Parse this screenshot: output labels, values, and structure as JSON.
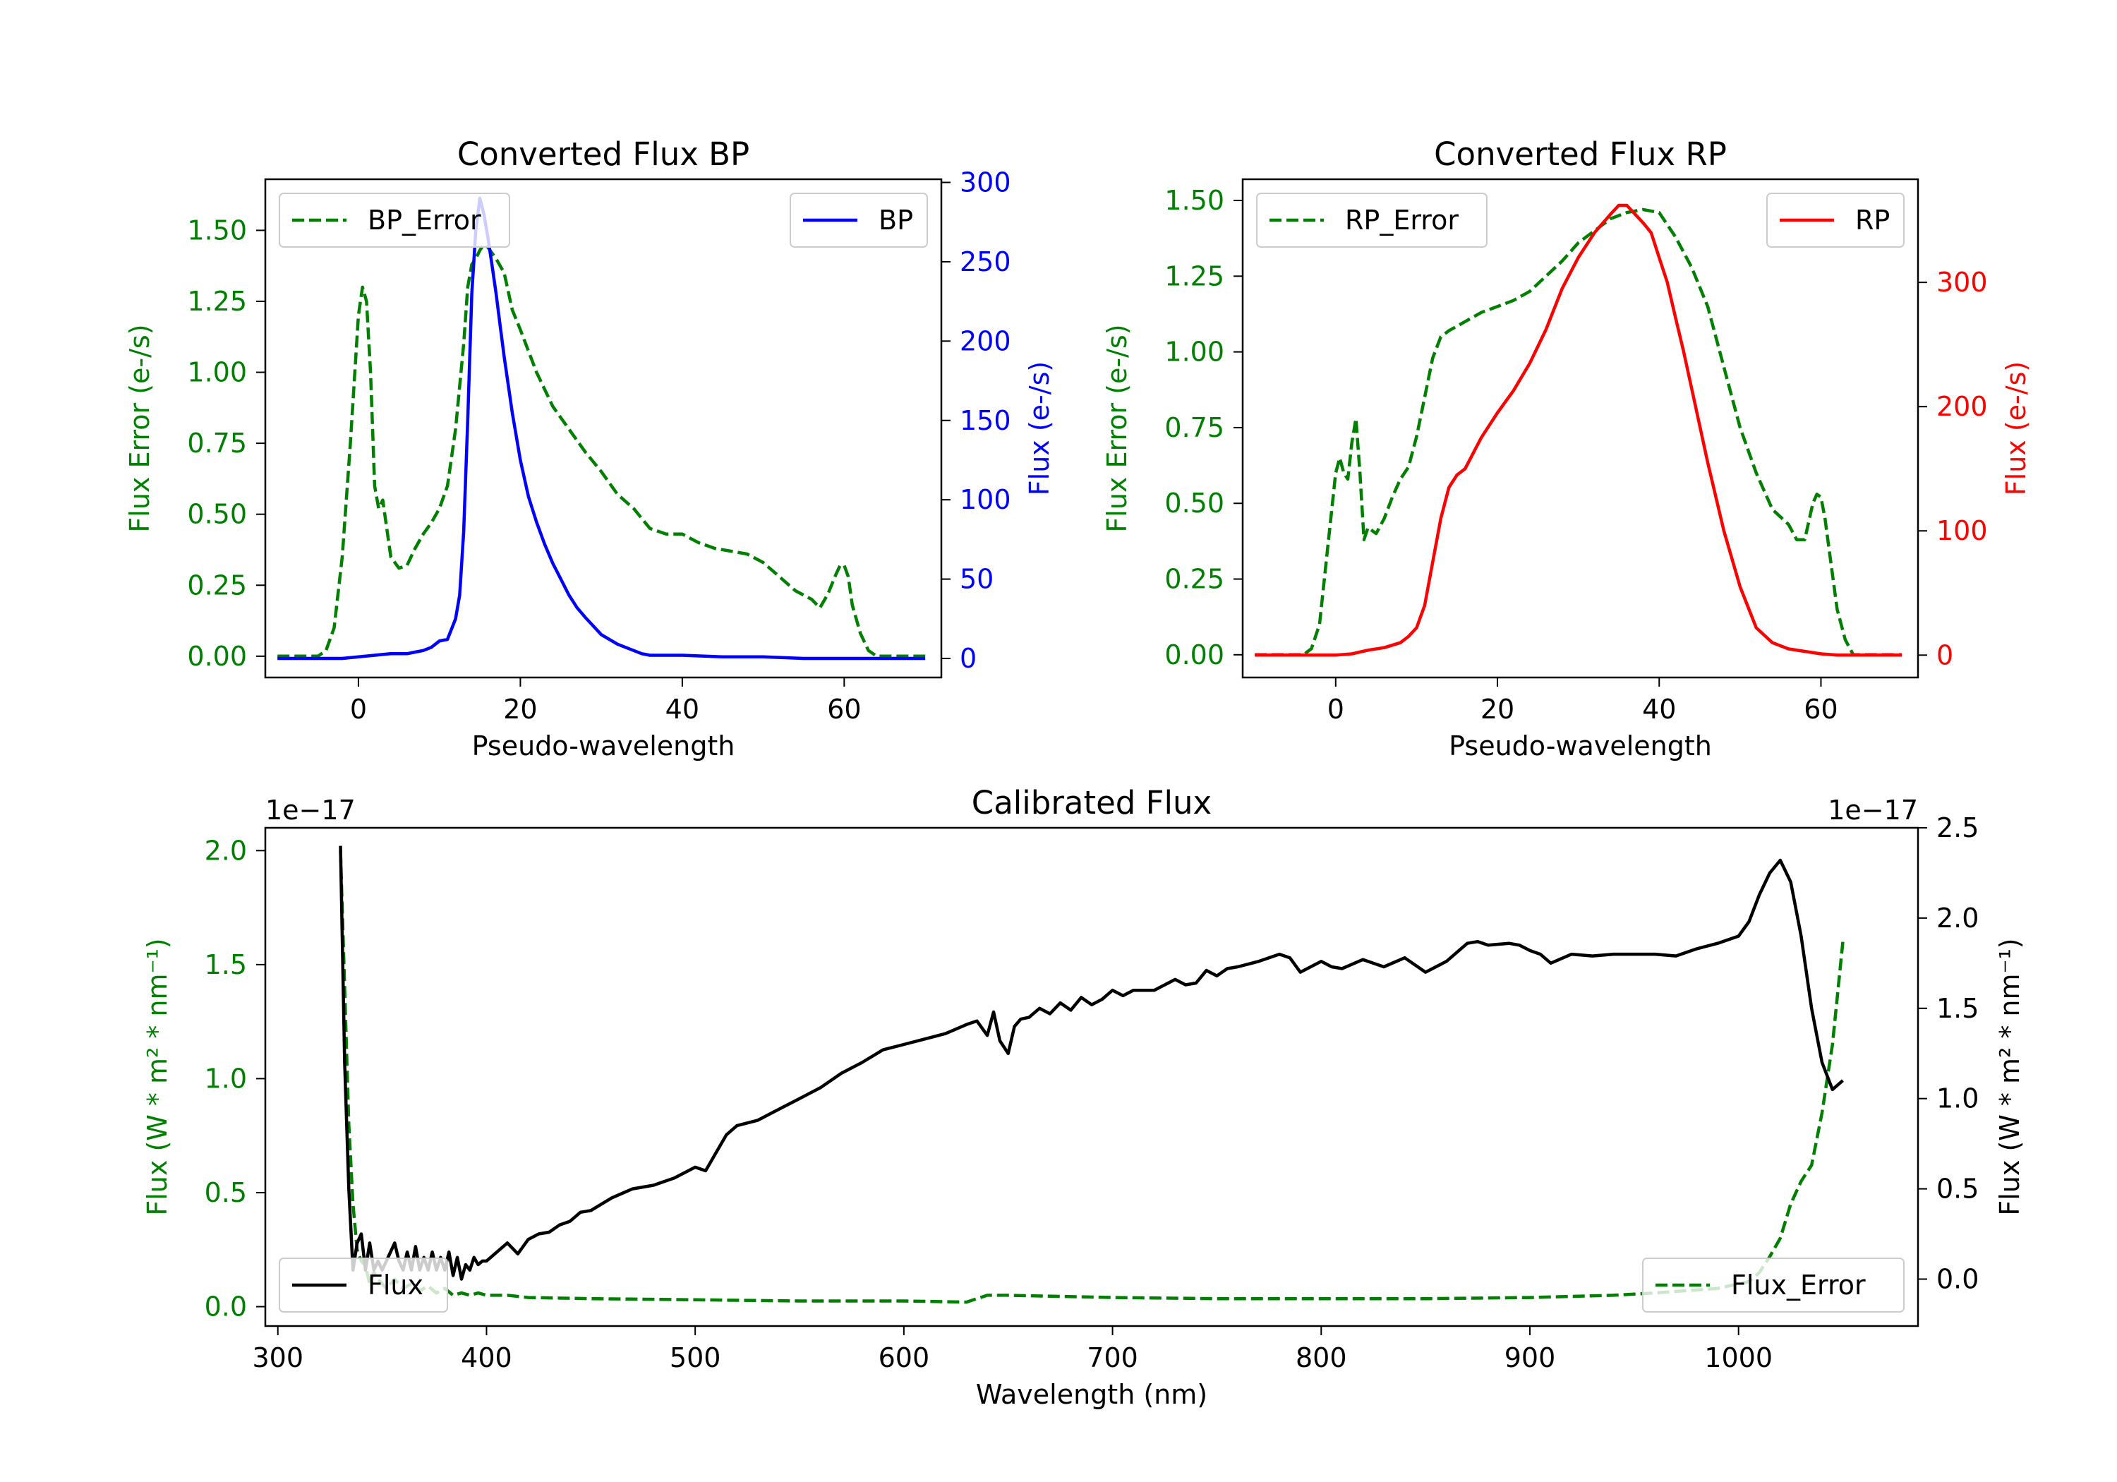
{
  "chart_data": [
    {
      "id": "bp",
      "type": "line",
      "title": "Converted Flux BP",
      "xlabel": "Pseudo-wavelength",
      "xlim": [
        -11.5,
        72
      ],
      "xticks": [
        0,
        20,
        40,
        60
      ],
      "xtick_labels": [
        "0",
        "20",
        "40",
        "60"
      ],
      "y_left": {
        "label": "Flux Error (e-/s)",
        "color": "#008000",
        "lim": [
          -0.075,
          1.68
        ],
        "ticks": [
          0,
          0.25,
          0.5,
          0.75,
          1.0,
          1.25,
          1.5
        ],
        "tick_labels": [
          "0.00",
          "0.25",
          "0.50",
          "0.75",
          "1.00",
          "1.25",
          "1.50"
        ]
      },
      "y_right": {
        "label": "Flux (e-/s)",
        "color": "#0000ff",
        "lim": [
          -12,
          302
        ],
        "ticks": [
          0,
          50,
          100,
          150,
          200,
          250,
          300
        ],
        "tick_labels": [
          "0",
          "50",
          "100",
          "150",
          "200",
          "250",
          "300"
        ]
      },
      "legend_left": {
        "label": "BP_Error",
        "position": "upper left"
      },
      "legend_right": {
        "label": "BP",
        "position": "upper right"
      },
      "series": [
        {
          "name": "BP_Error",
          "axis": "left",
          "style": "dashed",
          "color": "#008000",
          "x": [
            -10,
            -5,
            -4,
            -3,
            -2,
            -1,
            0,
            0.5,
            1,
            1.5,
            2,
            2.5,
            3,
            3.5,
            4,
            5,
            6,
            7,
            8,
            9,
            10,
            11,
            12,
            13,
            13.5,
            14,
            14.5,
            15,
            15.5,
            16,
            16.5,
            17,
            18,
            19,
            20,
            22,
            24,
            26,
            28,
            30,
            32,
            34,
            36,
            38,
            40,
            42,
            44,
            46,
            48,
            50,
            52,
            54,
            56,
            57,
            58,
            59,
            59.5,
            60,
            60.5,
            61,
            62,
            63,
            64,
            65,
            67,
            70
          ],
          "y": [
            0,
            0,
            0.02,
            0.1,
            0.35,
            0.75,
            1.2,
            1.3,
            1.25,
            1.0,
            0.6,
            0.52,
            0.55,
            0.45,
            0.35,
            0.31,
            0.32,
            0.38,
            0.43,
            0.47,
            0.52,
            0.6,
            0.8,
            1.1,
            1.3,
            1.38,
            1.4,
            1.43,
            1.45,
            1.44,
            1.42,
            1.4,
            1.35,
            1.22,
            1.15,
            1.0,
            0.88,
            0.8,
            0.72,
            0.65,
            0.57,
            0.52,
            0.45,
            0.43,
            0.43,
            0.4,
            0.38,
            0.37,
            0.36,
            0.33,
            0.28,
            0.23,
            0.2,
            0.17,
            0.22,
            0.29,
            0.32,
            0.32,
            0.28,
            0.18,
            0.08,
            0.02,
            0,
            0,
            0,
            0
          ]
        },
        {
          "name": "BP",
          "axis": "right",
          "style": "solid",
          "color": "#0000ff",
          "x": [
            -10,
            -2,
            0,
            2,
            4,
            6,
            7,
            8,
            9,
            10,
            11,
            12,
            12.5,
            13,
            13.5,
            14,
            14.5,
            15,
            15.5,
            16,
            16.5,
            17,
            17.5,
            18,
            19,
            20,
            21,
            22,
            23,
            24,
            25,
            26,
            27,
            28,
            30,
            32,
            34,
            35,
            36,
            40,
            45,
            48,
            50,
            55,
            60,
            65,
            70
          ],
          "y": [
            0,
            0,
            1,
            2,
            3,
            3,
            4,
            5,
            7,
            11,
            12,
            25,
            40,
            80,
            150,
            230,
            270,
            290,
            280,
            265,
            248,
            230,
            210,
            190,
            155,
            125,
            102,
            86,
            72,
            60,
            50,
            40,
            32,
            26,
            15,
            9,
            5,
            3,
            2,
            2,
            1,
            1,
            1,
            0,
            0,
            0,
            0
          ]
        }
      ]
    },
    {
      "id": "rp",
      "type": "line",
      "title": "Converted Flux RP",
      "xlabel": "Pseudo-wavelength",
      "xlim": [
        -11.5,
        72
      ],
      "xticks": [
        0,
        20,
        40,
        60
      ],
      "xtick_labels": [
        "0",
        "20",
        "40",
        "60"
      ],
      "y_left": {
        "label": "Flux Error (e-/s)",
        "color": "#008000",
        "lim": [
          -0.075,
          1.57
        ],
        "ticks": [
          0,
          0.25,
          0.5,
          0.75,
          1.0,
          1.25,
          1.5
        ],
        "tick_labels": [
          "0.00",
          "0.25",
          "0.50",
          "0.75",
          "1.00",
          "1.25",
          "1.50"
        ]
      },
      "y_right": {
        "label": "Flux (e-/s)",
        "color": "#ff0000",
        "lim": [
          -18,
          383
        ],
        "ticks": [
          0,
          100,
          200,
          300
        ],
        "tick_labels": [
          "0",
          "100",
          "200",
          "300"
        ]
      },
      "legend_left": {
        "label": "RP_Error",
        "position": "upper left"
      },
      "legend_right": {
        "label": "RP",
        "position": "upper right"
      },
      "series": [
        {
          "name": "RP_Error",
          "axis": "left",
          "style": "dashed",
          "color": "#008000",
          "x": [
            -10,
            -4,
            -3,
            -2,
            -1,
            0,
            0.5,
            1,
            1.5,
            2,
            2.5,
            3,
            3.5,
            4,
            5,
            6,
            7,
            8,
            9,
            10,
            11,
            12,
            13,
            14,
            16,
            18,
            20,
            22,
            24,
            26,
            28,
            30,
            32,
            34,
            36,
            38,
            40,
            42,
            44,
            46,
            48,
            50,
            52,
            54,
            56,
            57,
            58,
            59,
            59.5,
            60,
            60.5,
            61,
            62,
            63,
            64,
            66,
            70
          ],
          "y": [
            0,
            0,
            0.02,
            0.1,
            0.35,
            0.6,
            0.65,
            0.6,
            0.58,
            0.7,
            0.78,
            0.6,
            0.38,
            0.42,
            0.4,
            0.45,
            0.52,
            0.58,
            0.62,
            0.72,
            0.85,
            0.98,
            1.05,
            1.07,
            1.1,
            1.13,
            1.15,
            1.17,
            1.2,
            1.25,
            1.3,
            1.36,
            1.4,
            1.44,
            1.46,
            1.47,
            1.46,
            1.38,
            1.28,
            1.15,
            0.95,
            0.75,
            0.6,
            0.48,
            0.43,
            0.38,
            0.38,
            0.5,
            0.53,
            0.52,
            0.45,
            0.35,
            0.15,
            0.05,
            0,
            0,
            0
          ]
        },
        {
          "name": "RP",
          "axis": "right",
          "style": "solid",
          "color": "#ff0000",
          "x": [
            -10,
            -2,
            0,
            2,
            4,
            6,
            8,
            9,
            10,
            11,
            12,
            13,
            14,
            15,
            16,
            18,
            20,
            22,
            24,
            26,
            28,
            30,
            32,
            34,
            35,
            36,
            37,
            38,
            39,
            40,
            41,
            42,
            43,
            44,
            46,
            48,
            50,
            52,
            54,
            56,
            58,
            60,
            62,
            65,
            70
          ],
          "y": [
            0,
            0,
            0,
            1,
            4,
            6,
            10,
            15,
            22,
            40,
            75,
            110,
            135,
            145,
            150,
            175,
            195,
            213,
            235,
            262,
            295,
            320,
            340,
            355,
            362,
            362,
            355,
            348,
            340,
            320,
            300,
            272,
            245,
            215,
            155,
            100,
            55,
            22,
            10,
            5,
            3,
            1,
            0,
            0,
            0
          ]
        }
      ]
    },
    {
      "id": "calibrated",
      "type": "line",
      "title": "Calibrated Flux",
      "xlabel": "Wavelength (nm)",
      "xlim": [
        294,
        1086
      ],
      "xticks": [
        300,
        400,
        500,
        600,
        700,
        800,
        900,
        1000
      ],
      "xtick_labels": [
        "300",
        "400",
        "500",
        "600",
        "700",
        "800",
        "900",
        "1000"
      ],
      "y_left": {
        "label": "Flux (W * m² * nm⁻¹)",
        "color": "#008000",
        "scale_label": "1e−17",
        "lim": [
          -0.085,
          2.1
        ],
        "ticks": [
          0,
          0.5,
          1.0,
          1.5,
          2.0
        ],
        "tick_labels": [
          "0.0",
          "0.5",
          "1.0",
          "1.5",
          "2.0"
        ]
      },
      "y_right": {
        "label": "Flux (W * m² * nm⁻¹)",
        "color": "#000000",
        "scale_label": "1e−17",
        "lim": [
          -0.26,
          2.5
        ],
        "ticks": [
          0,
          0.5,
          1.0,
          1.5,
          2.0,
          2.5
        ],
        "tick_labels": [
          "0.0",
          "0.5",
          "1.0",
          "1.5",
          "2.0",
          "2.5"
        ]
      },
      "legend_left": {
        "label": "Flux",
        "position": "lower left"
      },
      "legend_right": {
        "label": "Flux_Error",
        "position": "lower right"
      },
      "series": [
        {
          "name": "Flux_Error",
          "axis": "left",
          "style": "dashed",
          "color": "#008000",
          "x": [
            330,
            332,
            334,
            336,
            338,
            340,
            342,
            344,
            346,
            348,
            350,
            352,
            356,
            360,
            364,
            368,
            372,
            376,
            380,
            384,
            388,
            392,
            396,
            400,
            410,
            420,
            450,
            500,
            550,
            600,
            630,
            640,
            650,
            700,
            750,
            800,
            850,
            900,
            940,
            960,
            990,
            1005,
            1010,
            1015,
            1020,
            1025,
            1030,
            1035,
            1040,
            1045,
            1050
          ],
          "y": [
            2.0,
            1.4,
            0.8,
            0.45,
            0.25,
            0.2,
            0.18,
            0.1,
            0.15,
            0.12,
            0.1,
            0.08,
            0.12,
            0.08,
            0.1,
            0.07,
            0.09,
            0.06,
            0.08,
            0.05,
            0.06,
            0.05,
            0.06,
            0.05,
            0.05,
            0.04,
            0.035,
            0.03,
            0.025,
            0.025,
            0.02,
            0.05,
            0.05,
            0.04,
            0.035,
            0.035,
            0.035,
            0.04,
            0.05,
            0.06,
            0.08,
            0.11,
            0.15,
            0.22,
            0.3,
            0.45,
            0.55,
            0.62,
            0.85,
            1.15,
            1.6
          ]
        },
        {
          "name": "Flux",
          "axis": "right",
          "style": "solid",
          "color": "#000000",
          "x": [
            330,
            332,
            334,
            336,
            338,
            340,
            342,
            344,
            346,
            348,
            350,
            352,
            354,
            356,
            358,
            360,
            362,
            364,
            366,
            368,
            370,
            372,
            374,
            376,
            378,
            380,
            382,
            384,
            386,
            388,
            390,
            392,
            394,
            396,
            398,
            400,
            405,
            410,
            415,
            420,
            425,
            430,
            435,
            440,
            445,
            450,
            460,
            470,
            480,
            490,
            500,
            505,
            510,
            515,
            520,
            530,
            540,
            550,
            560,
            570,
            580,
            590,
            600,
            610,
            620,
            630,
            635,
            640,
            643,
            646,
            650,
            653,
            656,
            660,
            665,
            670,
            675,
            680,
            685,
            690,
            695,
            700,
            705,
            710,
            720,
            730,
            735,
            740,
            745,
            750,
            755,
            760,
            770,
            780,
            785,
            790,
            800,
            805,
            810,
            820,
            830,
            840,
            850,
            860,
            870,
            875,
            880,
            890,
            895,
            900,
            905,
            910,
            920,
            930,
            940,
            950,
            960,
            970,
            980,
            990,
            1000,
            1005,
            1010,
            1015,
            1020,
            1025,
            1030,
            1035,
            1040,
            1045,
            1050
          ],
          "y": [
            2.4,
            1.2,
            0.5,
            0.05,
            0.2,
            0.25,
            0.05,
            0.2,
            0.05,
            0.1,
            0.05,
            0.1,
            0.15,
            0.2,
            0.1,
            0.05,
            0.15,
            0.05,
            0.18,
            0.05,
            0.12,
            0.05,
            0.15,
            0.05,
            0.12,
            0.05,
            0.15,
            0.02,
            0.12,
            0.0,
            0.08,
            0.05,
            0.12,
            0.08,
            0.1,
            0.1,
            0.15,
            0.2,
            0.14,
            0.22,
            0.25,
            0.26,
            0.3,
            0.32,
            0.37,
            0.38,
            0.45,
            0.5,
            0.52,
            0.56,
            0.62,
            0.6,
            0.7,
            0.8,
            0.85,
            0.88,
            0.94,
            1.0,
            1.06,
            1.14,
            1.2,
            1.27,
            1.3,
            1.33,
            1.36,
            1.41,
            1.43,
            1.35,
            1.48,
            1.32,
            1.25,
            1.4,
            1.44,
            1.45,
            1.5,
            1.47,
            1.53,
            1.49,
            1.56,
            1.52,
            1.55,
            1.6,
            1.57,
            1.6,
            1.6,
            1.66,
            1.63,
            1.64,
            1.71,
            1.68,
            1.72,
            1.73,
            1.76,
            1.8,
            1.78,
            1.7,
            1.76,
            1.73,
            1.72,
            1.77,
            1.73,
            1.78,
            1.7,
            1.76,
            1.86,
            1.87,
            1.85,
            1.86,
            1.85,
            1.82,
            1.8,
            1.75,
            1.8,
            1.79,
            1.8,
            1.8,
            1.8,
            1.79,
            1.83,
            1.86,
            1.9,
            1.98,
            2.13,
            2.25,
            2.32,
            2.2,
            1.9,
            1.5,
            1.2,
            1.05,
            1.1
          ]
        }
      ]
    }
  ]
}
